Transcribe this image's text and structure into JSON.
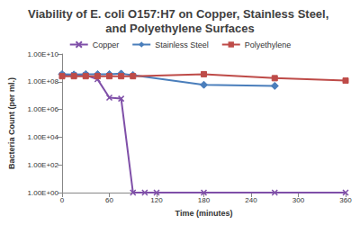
{
  "chart_data": {
    "type": "line",
    "title": "Viability of E. coli O157:H7 on Copper, Stainless Steel, and Polyethylene Surfaces",
    "x_label": "Time (minutes)",
    "y_label": "Bacteria Count (per ml.)",
    "log": "y",
    "grid": false,
    "legend": "top",
    "xlim": [
      0,
      360
    ],
    "xticks": [
      0,
      60,
      120,
      180,
      240,
      300,
      360
    ],
    "ylim": [
      1,
      10000000000
    ],
    "yticks": [
      {
        "value": 1,
        "label": "1.00E+00"
      },
      {
        "value": 100,
        "label": "1.00E+02"
      },
      {
        "value": 10000,
        "label": "1.00E+04"
      },
      {
        "value": 1000000,
        "label": "1.00E+06"
      },
      {
        "value": 100000000,
        "label": "1.00E+08"
      },
      {
        "value": 10000000000,
        "label": "1.00E+10"
      }
    ],
    "series": [
      {
        "name": "Copper",
        "color": "#7f4fa8",
        "marker": "x",
        "x": [
          0,
          15,
          30,
          45,
          60,
          75,
          90,
          105,
          120,
          180,
          270,
          360
        ],
        "values": [
          300000000,
          300000000,
          300000000,
          150000000,
          7000000,
          6000000,
          1,
          1,
          1,
          1,
          1,
          1
        ]
      },
      {
        "name": "Stainless Steel",
        "color": "#4a7ebb",
        "marker": "diamond",
        "x": [
          0,
          15,
          30,
          45,
          60,
          75,
          90,
          180,
          270
        ],
        "values": [
          350000000,
          330000000,
          350000000,
          350000000,
          350000000,
          380000000,
          300000000,
          60000000,
          50000000
        ]
      },
      {
        "name": "Polyethylene",
        "color": "#be4b48",
        "marker": "square",
        "x": [
          0,
          15,
          30,
          45,
          60,
          75,
          90,
          180,
          270,
          360
        ],
        "values": [
          250000000,
          250000000,
          250000000,
          250000000,
          250000000,
          250000000,
          250000000,
          350000000,
          180000000,
          120000000
        ]
      }
    ]
  }
}
